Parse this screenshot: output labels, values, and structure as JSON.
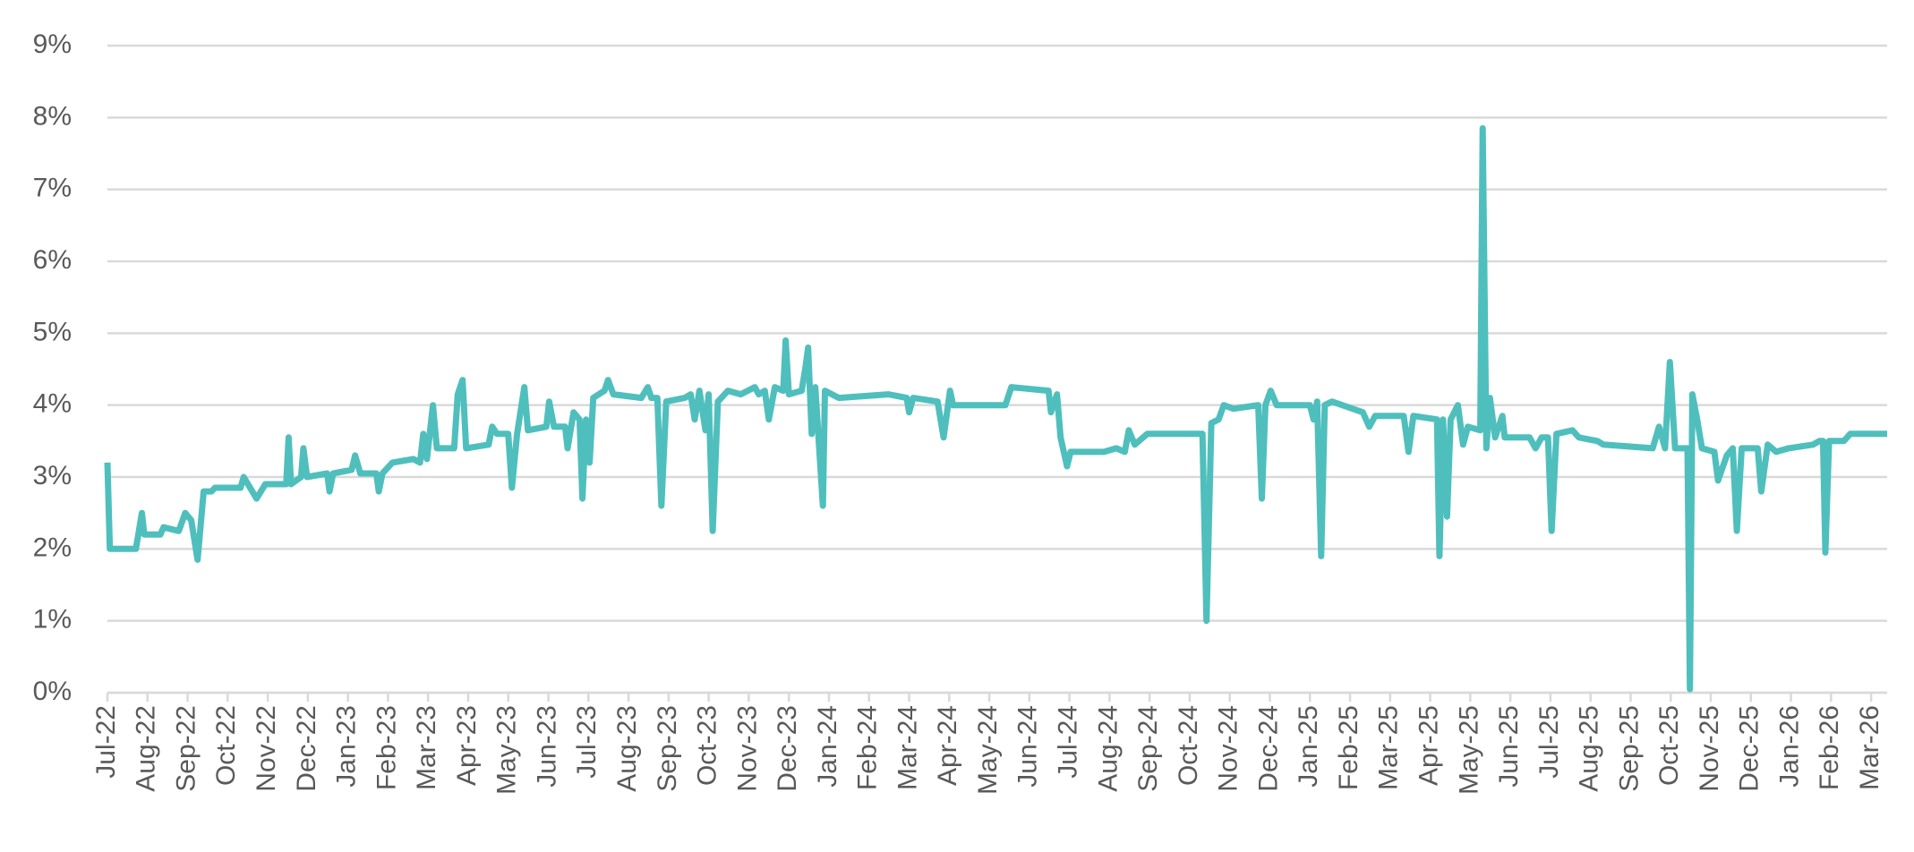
{
  "chart_data": {
    "type": "line",
    "grid": true,
    "ylim": [
      0,
      9
    ],
    "yticks": [
      {
        "value": 0,
        "label": "0%"
      },
      {
        "value": 1,
        "label": "1%"
      },
      {
        "value": 2,
        "label": "2%"
      },
      {
        "value": 3,
        "label": "3%"
      },
      {
        "value": 4,
        "label": "4%"
      },
      {
        "value": 5,
        "label": "5%"
      },
      {
        "value": 6,
        "label": "6%"
      },
      {
        "value": 7,
        "label": "7%"
      },
      {
        "value": 8,
        "label": "8%"
      },
      {
        "value": 9,
        "label": "9%"
      }
    ],
    "xlim": [
      0,
      44.4
    ],
    "xticks": [
      {
        "value": 0,
        "label": "Jul-22"
      },
      {
        "value": 1,
        "label": "Aug-22"
      },
      {
        "value": 2,
        "label": "Sep-22"
      },
      {
        "value": 3,
        "label": "Oct-22"
      },
      {
        "value": 4,
        "label": "Nov-22"
      },
      {
        "value": 5,
        "label": "Dec-22"
      },
      {
        "value": 6,
        "label": "Jan-23"
      },
      {
        "value": 7,
        "label": "Feb-23"
      },
      {
        "value": 8,
        "label": "Mar-23"
      },
      {
        "value": 9,
        "label": "Apr-23"
      },
      {
        "value": 10,
        "label": "May-23"
      },
      {
        "value": 11,
        "label": "Jun-23"
      },
      {
        "value": 12,
        "label": "Jul-23"
      },
      {
        "value": 13,
        "label": "Aug-23"
      },
      {
        "value": 14,
        "label": "Sep-23"
      },
      {
        "value": 15,
        "label": "Oct-23"
      },
      {
        "value": 16,
        "label": "Nov-23"
      },
      {
        "value": 17,
        "label": "Dec-23"
      },
      {
        "value": 18,
        "label": "Jan-24"
      },
      {
        "value": 19,
        "label": "Feb-24"
      },
      {
        "value": 20,
        "label": "Mar-24"
      },
      {
        "value": 21,
        "label": "Apr-24"
      },
      {
        "value": 22,
        "label": "May-24"
      },
      {
        "value": 23,
        "label": "Jun-24"
      },
      {
        "value": 24,
        "label": "Jul-24"
      },
      {
        "value": 25,
        "label": "Aug-24"
      },
      {
        "value": 26,
        "label": "Sep-24"
      },
      {
        "value": 27,
        "label": "Oct-24"
      },
      {
        "value": 28,
        "label": "Nov-24"
      },
      {
        "value": 29,
        "label": "Dec-24"
      },
      {
        "value": 30,
        "label": "Jan-25"
      },
      {
        "value": 31,
        "label": "Feb-25"
      },
      {
        "value": 32,
        "label": "Mar-25"
      },
      {
        "value": 33,
        "label": "Apr-25"
      },
      {
        "value": 34,
        "label": "May-25"
      },
      {
        "value": 35,
        "label": "Jun-25"
      },
      {
        "value": 36,
        "label": "Jul-25"
      },
      {
        "value": 37,
        "label": "Aug-25"
      },
      {
        "value": 38,
        "label": "Sep-25"
      },
      {
        "value": 39,
        "label": "Oct-25"
      },
      {
        "value": 40,
        "label": "Nov-25"
      },
      {
        "value": 41,
        "label": "Dec-25"
      },
      {
        "value": 42,
        "label": "Jan-26"
      },
      {
        "value": 43,
        "label": "Feb-26"
      },
      {
        "value": 44,
        "label": "Mar-26"
      }
    ],
    "series": [
      {
        "color": "#4fbfbd",
        "x": [
          0,
          0.06,
          0.71,
          0.77,
          0.86,
          0.92,
          1.32,
          1.4,
          1.78,
          1.94,
          2.09,
          2.25,
          2.4,
          2.6,
          2.68,
          3.32,
          3.4,
          3.72,
          3.94,
          4.46,
          4.52,
          4.58,
          4.83,
          4.89,
          4.98,
          5.48,
          5.54,
          5.63,
          6.09,
          6.18,
          6.31,
          6.71,
          6.77,
          6.86,
          7.11,
          7.63,
          7.8,
          7.88,
          7.97,
          8.12,
          8.22,
          8.65,
          8.74,
          8.86,
          8.95,
          9.51,
          9.6,
          9.72,
          10.0,
          10.09,
          10.22,
          10.4,
          10.49,
          10.95,
          11.02,
          11.14,
          11.42,
          11.48,
          11.63,
          11.78,
          11.85,
          11.94,
          12.03,
          12.12,
          12.4,
          12.49,
          12.62,
          13.32,
          13.48,
          13.57,
          13.72,
          13.82,
          13.94,
          14.4,
          14.55,
          14.65,
          14.77,
          14.92,
          15.0,
          15.1,
          15.23,
          15.48,
          15.8,
          16.15,
          16.25,
          16.4,
          16.5,
          16.65,
          16.86,
          16.92,
          17.0,
          17.32,
          17.42,
          17.48,
          17.57,
          17.66,
          17.85,
          17.9,
          18.25,
          19.48,
          19.94,
          20.0,
          20.1,
          20.71,
          20.86,
          21.02,
          21.1,
          22.4,
          22.55,
          23.48,
          23.54,
          23.69,
          23.78,
          23.94,
          24.03,
          24.86,
          25.17,
          25.38,
          25.48,
          25.63,
          25.94,
          27.32,
          27.42,
          27.54,
          27.72,
          27.85,
          28.09,
          28.71,
          28.8,
          28.89,
          29.02,
          29.17,
          30.0,
          30.09,
          30.18,
          30.28,
          30.37,
          30.55,
          31.32,
          31.48,
          31.63,
          32.34,
          32.46,
          32.58,
          33.17,
          33.23,
          33.32,
          33.42,
          33.51,
          33.69,
          33.82,
          33.94,
          34.25,
          34.31,
          34.4,
          34.49,
          34.62,
          34.8,
          34.86,
          35.48,
          35.63,
          35.78,
          35.94,
          36.03,
          36.15,
          36.55,
          36.71,
          37.17,
          37.32,
          38.55,
          38.71,
          38.86,
          38.98,
          39.11,
          39.42,
          39.48,
          39.54,
          39.66,
          39.78,
          40.09,
          40.18,
          40.4,
          40.55,
          40.65,
          40.77,
          41.17,
          41.26,
          41.42,
          41.63,
          41.94,
          42.55,
          42.71,
          42.8,
          42.86,
          42.95,
          43.32,
          43.48,
          44.4
        ],
        "values": [
          3.2,
          2.0,
          2.0,
          2.2,
          2.5,
          2.2,
          2.2,
          2.3,
          2.25,
          2.5,
          2.4,
          1.85,
          2.8,
          2.8,
          2.85,
          2.85,
          3.0,
          2.7,
          2.9,
          2.9,
          3.55,
          2.9,
          3.0,
          3.4,
          3.0,
          3.05,
          2.8,
          3.05,
          3.1,
          3.3,
          3.05,
          3.05,
          2.8,
          3.05,
          3.2,
          3.25,
          3.2,
          3.6,
          3.25,
          4.0,
          3.4,
          3.4,
          4.15,
          4.35,
          3.4,
          3.45,
          3.7,
          3.6,
          3.6,
          2.85,
          3.6,
          4.25,
          3.65,
          3.7,
          4.05,
          3.7,
          3.7,
          3.4,
          3.9,
          3.8,
          2.7,
          3.8,
          3.2,
          4.1,
          4.2,
          4.35,
          4.15,
          4.1,
          4.25,
          4.1,
          4.1,
          2.6,
          4.05,
          4.1,
          4.15,
          3.8,
          4.2,
          3.65,
          4.15,
          2.25,
          4.05,
          4.2,
          4.15,
          4.25,
          4.15,
          4.2,
          3.8,
          4.25,
          4.2,
          4.9,
          4.15,
          4.2,
          4.55,
          4.8,
          3.6,
          4.25,
          2.6,
          4.2,
          4.1,
          4.15,
          4.1,
          3.9,
          4.1,
          4.05,
          3.55,
          4.2,
          4.0,
          4.0,
          4.25,
          4.2,
          3.9,
          4.15,
          3.55,
          3.15,
          3.35,
          3.35,
          3.4,
          3.35,
          3.65,
          3.45,
          3.6,
          3.6,
          1.0,
          3.75,
          3.8,
          4.0,
          3.95,
          4.0,
          2.7,
          4.0,
          4.2,
          4.0,
          4.0,
          3.8,
          4.05,
          1.9,
          4.0,
          4.05,
          3.9,
          3.7,
          3.85,
          3.85,
          3.35,
          3.85,
          3.8,
          1.9,
          3.8,
          2.45,
          3.8,
          4.0,
          3.45,
          3.7,
          3.65,
          7.85,
          3.4,
          4.1,
          3.55,
          3.85,
          3.55,
          3.55,
          3.4,
          3.55,
          3.55,
          2.25,
          3.6,
          3.65,
          3.55,
          3.5,
          3.45,
          3.4,
          3.7,
          3.4,
          4.6,
          3.4,
          3.4,
          0.05,
          4.15,
          3.8,
          3.4,
          3.35,
          2.95,
          3.3,
          3.4,
          2.25,
          3.4,
          3.4,
          2.8,
          3.45,
          3.35,
          3.4,
          3.45,
          3.5,
          3.5,
          1.95,
          3.5,
          3.5,
          3.6,
          3.6
        ]
      }
    ]
  }
}
